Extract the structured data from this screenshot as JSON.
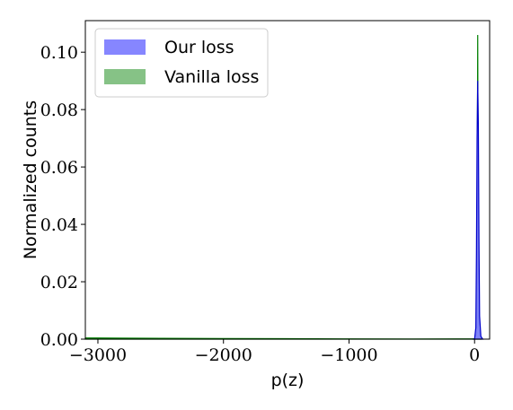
{
  "chart_data": {
    "type": "area",
    "title": "",
    "xlabel": "p(z)",
    "ylabel": "Normalized counts",
    "xlim": [
      -3100,
      120
    ],
    "ylim": [
      0,
      0.111
    ],
    "x_ticks": [
      {
        "value": -3000,
        "label": "−3000"
      },
      {
        "value": -2000,
        "label": "−2000"
      },
      {
        "value": -1000,
        "label": "−1000"
      },
      {
        "value": 0,
        "label": "0"
      }
    ],
    "y_ticks": [
      {
        "value": 0.0,
        "label": "0.00"
      },
      {
        "value": 0.02,
        "label": "0.02"
      },
      {
        "value": 0.04,
        "label": "0.04"
      },
      {
        "value": 0.06,
        "label": "0.06"
      },
      {
        "value": 0.08,
        "label": "0.08"
      },
      {
        "value": 0.1,
        "label": "0.10"
      }
    ],
    "grid": false,
    "legend_position": "top-left",
    "series": [
      {
        "name": "Our loss",
        "color": "#7f7fff",
        "edge_color": "#0000cc",
        "x": [
          -15,
          0,
          10,
          15,
          20,
          25,
          30,
          35,
          40,
          50,
          65
        ],
        "y": [
          0,
          0,
          0.004,
          0.03,
          0.07,
          0.09,
          0.075,
          0.035,
          0.008,
          0.001,
          0
        ]
      },
      {
        "name": "Vanilla loss",
        "color": "#7fbf7f",
        "edge_color": "#007f00",
        "x": [
          -3100,
          -3000,
          -2500,
          -2000,
          -1500,
          -1000,
          -500,
          0,
          18,
          22,
          25,
          28,
          32,
          50
        ],
        "y": [
          0.0004,
          0.0004,
          0.0003,
          0.0002,
          0.00015,
          0.0001,
          5e-05,
          0.0001,
          0.002,
          0.06,
          0.106,
          0.06,
          0.004,
          0
        ]
      }
    ]
  }
}
